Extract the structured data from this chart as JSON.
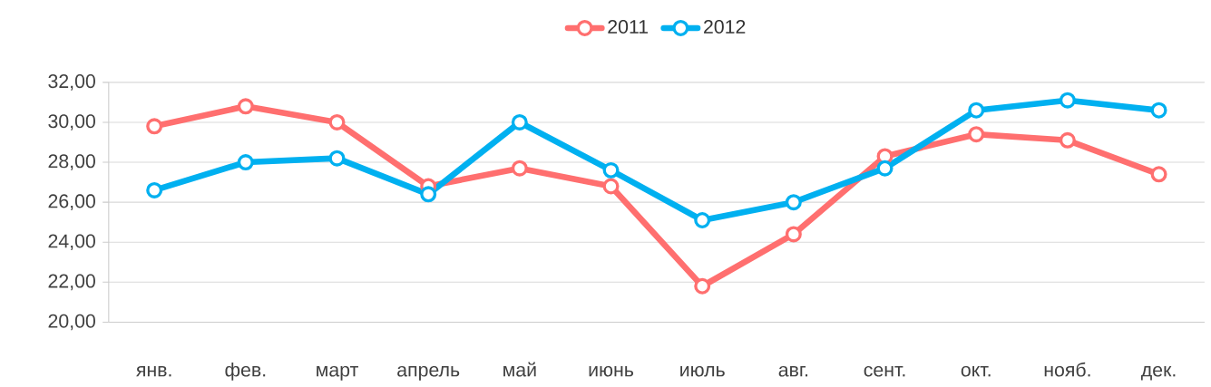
{
  "chart_data": {
    "type": "line",
    "categories": [
      "янв.",
      "фев.",
      "март",
      "апрель",
      "май",
      "июнь",
      "июль",
      "авг.",
      "сент.",
      "окт.",
      "нояб.",
      "дек."
    ],
    "series": [
      {
        "name": "2011",
        "color": "#ff6f6f",
        "values": [
          29.8,
          30.8,
          30.0,
          26.8,
          27.7,
          26.8,
          21.8,
          24.4,
          28.3,
          29.4,
          29.1,
          27.4
        ]
      },
      {
        "name": "2012",
        "color": "#00b0f0",
        "values": [
          26.6,
          28.0,
          28.2,
          26.4,
          30.0,
          27.6,
          25.1,
          26.0,
          27.7,
          30.6,
          31.1,
          30.6
        ]
      }
    ],
    "ylim": [
      20,
      32
    ],
    "yticks": [
      {
        "value": 20,
        "label": "20,00"
      },
      {
        "value": 22,
        "label": "22,00"
      },
      {
        "value": 24,
        "label": "24,00"
      },
      {
        "value": 26,
        "label": "26,00"
      },
      {
        "value": 28,
        "label": "28,00"
      },
      {
        "value": 30,
        "label": "30,00"
      },
      {
        "value": 32,
        "label": "32,00"
      }
    ],
    "grid": "y",
    "legend": "top",
    "marker": "circle"
  }
}
